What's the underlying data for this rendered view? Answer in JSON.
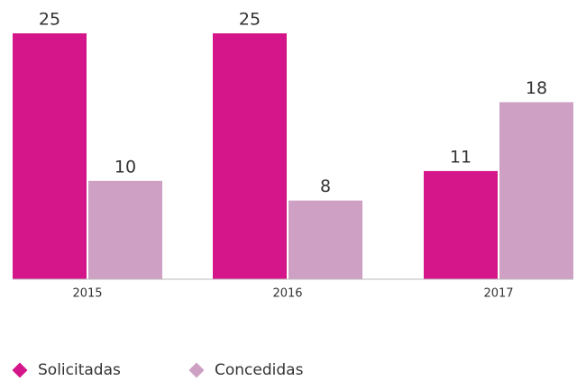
{
  "chart_data": {
    "type": "bar",
    "categories": [
      "2015",
      "2016",
      "2017"
    ],
    "series": [
      {
        "name": "Solicitadas",
        "color": "#d4168a",
        "values": [
          25,
          25,
          11
        ]
      },
      {
        "name": "Concedidas",
        "color": "#cda0c4",
        "values": [
          10,
          8,
          18
        ]
      }
    ]
  }
}
